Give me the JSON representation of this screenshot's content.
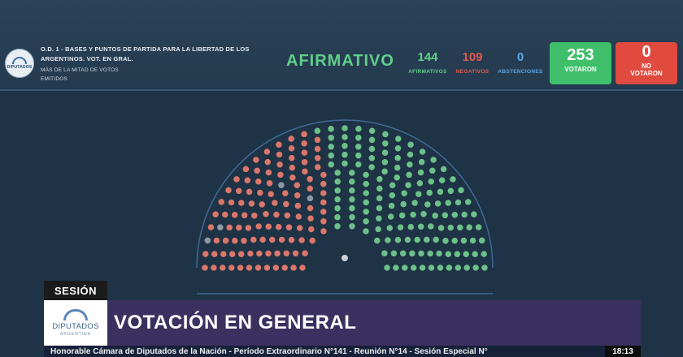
{
  "header": {
    "logo_text": "DIPUTADOS",
    "motion_title": "O.D. 1 - BASES Y PUNTOS DE PARTIDA PARA LA LIBERTAD DE LOS ARGENTINOS. VOT. EN GRAL.",
    "majority_rule": "MÁS DE LA MITAD DE VOTOS EMITIDOS",
    "result": "AFIRMATIVO",
    "counts": {
      "affirmative": {
        "value": "144",
        "label": "AFIRMATIVOS"
      },
      "negative": {
        "value": "109",
        "label": "NEGATIVOS"
      },
      "abstention": {
        "value": "0",
        "label": "ABSTENCIONES"
      }
    },
    "voted": {
      "value": "253",
      "label": "VOTARON"
    },
    "not_voted": {
      "value": "0",
      "label_line1": "NO",
      "label_line2": "VOTARON"
    }
  },
  "hemicycle": {
    "total_seats": 257,
    "affirmative": 144,
    "negative": 109,
    "empty": 4,
    "colors": {
      "affirmative": "#6cc08a",
      "negative": "#d9776c",
      "empty": "#8d99a6",
      "arc": "#3f6a95"
    }
  },
  "lower_third": {
    "section": "SESIÓN",
    "logo_name": "DIPUTADOS",
    "logo_sub": "ARGENTINA",
    "title": "VOTACIÓN EN GENERAL",
    "ticker": "Honorable Cámara de Diputados de la Nación - Período Extraordinario N°141 - Reunión N°14 - Sesión Especial N°",
    "clock": "18:13"
  }
}
